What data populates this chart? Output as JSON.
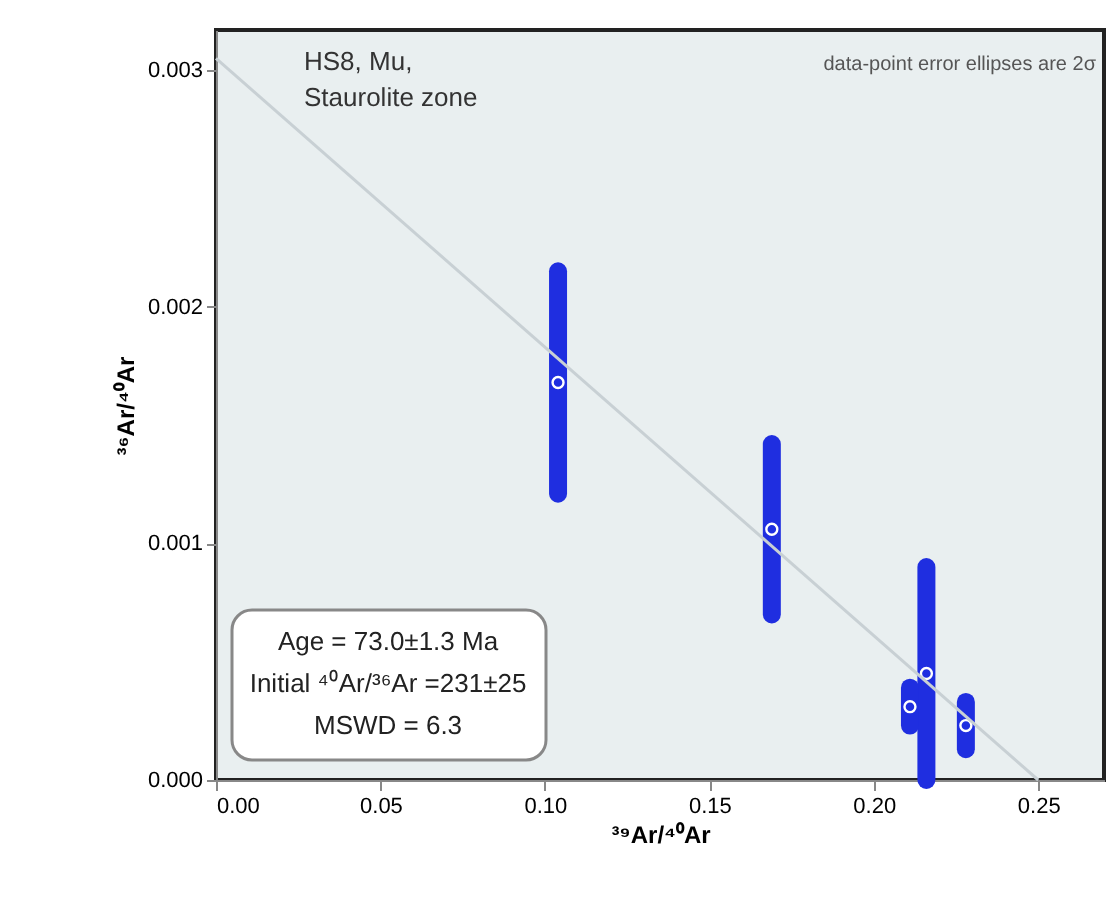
{
  "chart_data": {
    "type": "scatter",
    "xlabel": "³⁹Ar/⁴⁰Ar",
    "ylabel": "³⁶Ar/⁴⁰Ar",
    "xlim": [
      0,
      0.27
    ],
    "xticks": [
      {
        "value": 0,
        "label": "0.00"
      },
      0.05,
      {
        "value": 0.1,
        "label": "0.10"
      },
      0.15,
      {
        "value": 0.2,
        "label": "0.20"
      },
      0.25
    ],
    "ylim": [
      0,
      0.00317
    ],
    "yticks": [
      {
        "value": 0,
        "label": "0.000"
      },
      0.001,
      0.002,
      0.003
    ],
    "grid": false,
    "marker": "circle",
    "series": [
      {
        "color": "#1f2ee0",
        "x": [
          0.104,
          0.169,
          0.216,
          0.211,
          0.228
        ],
        "values": [
          0.00168,
          0.00106,
          0.00045,
          0.00031,
          0.00023
        ],
        "errors": [
          0.00047,
          0.00036,
          0.00045,
          8e-05,
          0.0001
        ]
      },
      {
        "type": "line",
        "color": "#c8d0d4",
        "line_style": "solid",
        "marker": "none",
        "x": [
          0,
          0.25
        ],
        "values": [
          0.00305,
          0
        ]
      }
    ],
    "annotations": [
      "HS8, Mu,",
      "Staurolite zone",
      "data-point error ellipses are 2σ",
      "Age = 73.0±1.3 Ma",
      "Initial ⁴⁰Ar/³⁶Ar =231±25",
      "MSWD = 6.3"
    ]
  }
}
